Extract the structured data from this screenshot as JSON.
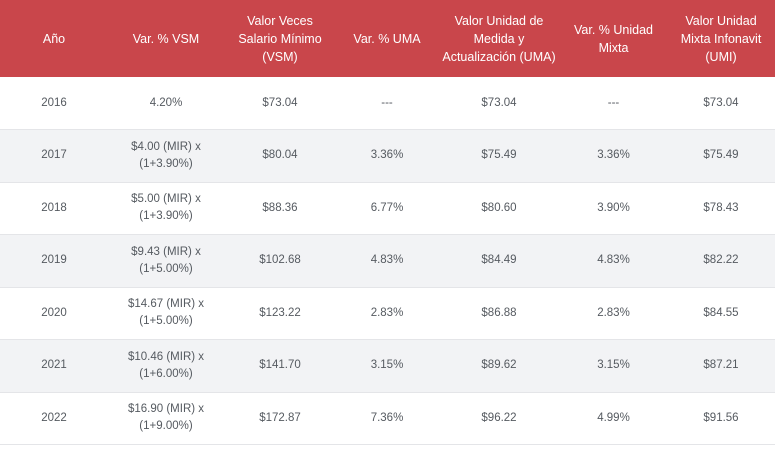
{
  "headers": [
    "Año",
    "Var. % VSM",
    "Valor Veces Salario Mínimo (VSM)",
    "Var. % UMA",
    "Valor Unidad de Medida y Actualización (UMA)",
    "Var. % Unidad Mixta",
    "Valor Unidad Mixta Infonavit (UMI)"
  ],
  "rows": [
    {
      "year": "2016",
      "var_vsm_1": "4.20%",
      "var_vsm_2": "",
      "vsm": "$73.04",
      "var_uma": "---",
      "uma": "$73.04",
      "var_mixta": "---",
      "umi": "$73.04"
    },
    {
      "year": "2017",
      "var_vsm_1": "$4.00 (MIR) x",
      "var_vsm_2": "(1+3.90%)",
      "vsm": "$80.04",
      "var_uma": "3.36%",
      "uma": "$75.49",
      "var_mixta": "3.36%",
      "umi": "$75.49"
    },
    {
      "year": "2018",
      "var_vsm_1": "$5.00 (MIR) x",
      "var_vsm_2": "(1+3.90%)",
      "vsm": "$88.36",
      "var_uma": "6.77%",
      "uma": "$80.60",
      "var_mixta": "3.90%",
      "umi": "$78.43"
    },
    {
      "year": "2019",
      "var_vsm_1": "$9.43 (MIR) x",
      "var_vsm_2": "(1+5.00%)",
      "vsm": "$102.68",
      "var_uma": "4.83%",
      "uma": "$84.49",
      "var_mixta": "4.83%",
      "umi": "$82.22"
    },
    {
      "year": "2020",
      "var_vsm_1": "$14.67 (MIR) x",
      "var_vsm_2": "(1+5.00%)",
      "vsm": "$123.22",
      "var_uma": "2.83%",
      "uma": "$86.88",
      "var_mixta": "2.83%",
      "umi": "$84.55"
    },
    {
      "year": "2021",
      "var_vsm_1": "$10.46 (MIR) x",
      "var_vsm_2": "(1+6.00%)",
      "vsm": "$141.70",
      "var_uma": "3.15%",
      "uma": "$89.62",
      "var_mixta": "3.15%",
      "umi": "$87.21"
    },
    {
      "year": "2022",
      "var_vsm_1": "$16.90 (MIR) x",
      "var_vsm_2": "(1+9.00%)",
      "vsm": "$172.87",
      "var_uma": "7.36%",
      "uma": "$96.22",
      "var_mixta": "4.99%",
      "umi": "$91.56"
    }
  ],
  "colors": {
    "header_bg": "#c9464b",
    "header_text": "#ffffff",
    "row_alt": "#f2f3f5",
    "cell_text": "#555a60"
  }
}
